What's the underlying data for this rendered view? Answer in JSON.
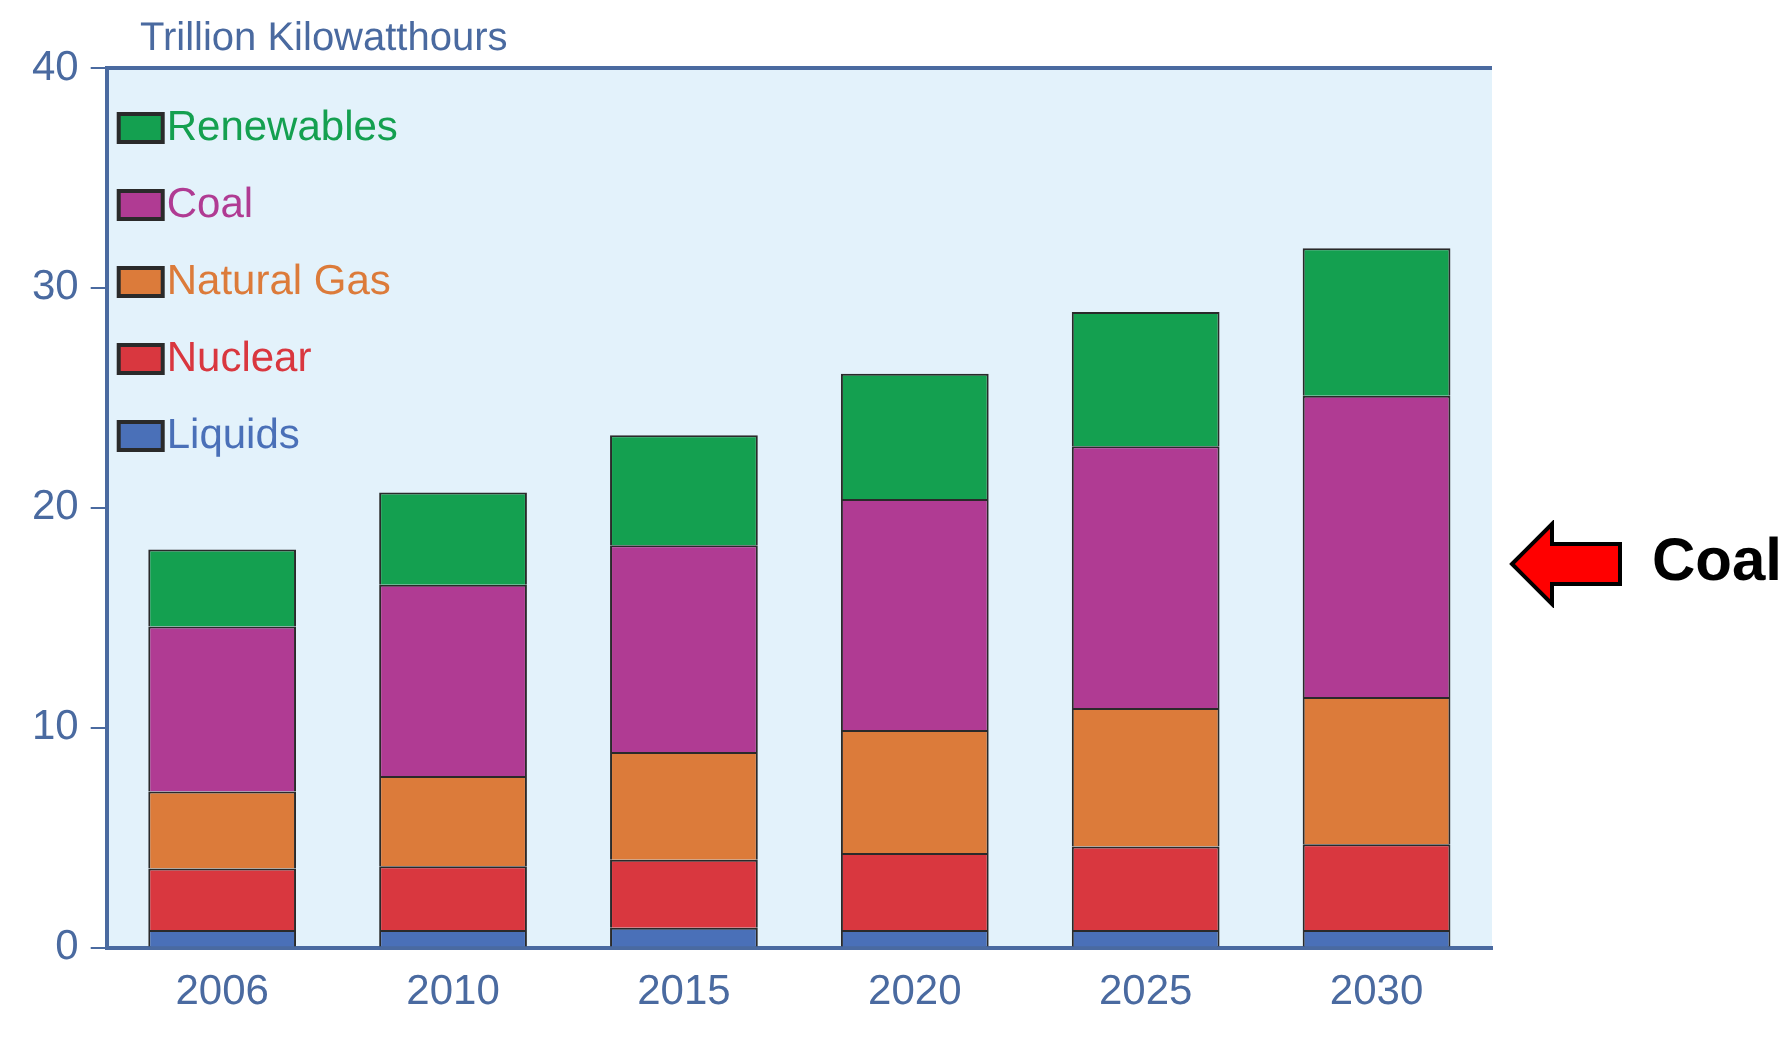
{
  "chart_data": {
    "type": "bar",
    "stacked": true,
    "ylabel": "Trillion Kilowatthours",
    "categories": [
      "2006",
      "2010",
      "2015",
      "2020",
      "2025",
      "2030"
    ],
    "series": [
      {
        "name": "Liquids",
        "color": "#4a70b8",
        "values": [
          0.8,
          0.8,
          0.9,
          0.8,
          0.8,
          0.8
        ]
      },
      {
        "name": "Nuclear",
        "color": "#d9373f",
        "values": [
          2.8,
          2.9,
          3.1,
          3.5,
          3.8,
          3.9
        ]
      },
      {
        "name": "Natural Gas",
        "color": "#dc7b3a",
        "values": [
          3.5,
          4.1,
          4.9,
          5.6,
          6.3,
          6.7
        ]
      },
      {
        "name": "Coal",
        "color": "#b03b93",
        "values": [
          7.5,
          8.7,
          9.4,
          10.5,
          11.9,
          13.7
        ]
      },
      {
        "name": "Renewables",
        "color": "#14a050",
        "values": [
          3.5,
          4.2,
          5.0,
          5.7,
          6.1,
          6.7
        ]
      }
    ],
    "ylim": [
      0,
      40
    ],
    "yticks": [
      0,
      10,
      20,
      30,
      40
    ],
    "grid": false,
    "legend": "top left",
    "annotations": [
      "Coal"
    ]
  }
}
